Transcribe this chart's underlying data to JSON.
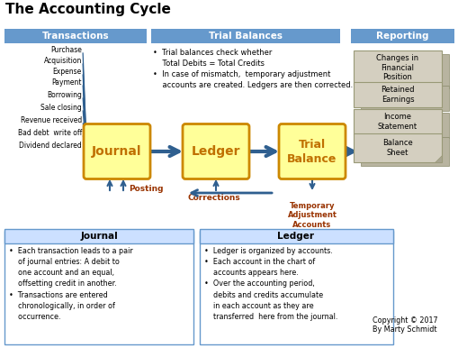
{
  "title": "The Accounting Cycle",
  "bg_color": "#ffffff",
  "header_bg": "#6699cc",
  "box_fill": "#ffff99",
  "box_edge": "#cc8800",
  "arrow_color": "#2f5f8f",
  "note_fill": "#d4cfc0",
  "note_edge": "#999977",
  "bottom_fill": "#cce0ff",
  "bottom_edge": "#6699cc",
  "sections": [
    "Transactions",
    "Trial Balances",
    "Reporting"
  ],
  "transaction_items": [
    "Purchase",
    "Acquisition",
    "Expense",
    "Payment",
    "Borrowing",
    "Sale closing",
    "Revenue received",
    "Bad debt  write off",
    "Dividend declared"
  ],
  "reporting_items": [
    "Changes in\nFinancial\nPosition",
    "Retained\nEarnings",
    "Income\nStatement",
    "Balance\nSheet"
  ],
  "tb_text": "•  Trial balances check whether\n    Total Debits = Total Credits\n•  In case of mismatch,  temporary adjustment\n    accounts are created. Ledgers are then corrected.",
  "posting_label": "Posting",
  "corrections_label": "Corrections",
  "temp_adj_label": "Temporary\nAdjustment\nAccounts",
  "bottom_left_header": "Journal",
  "bottom_right_header": "Ledger",
  "bottom_left_text": "•  Each transaction leads to a pair\n    of journal entries: A debit to\n    one account and an equal,\n    offsetting credit in another.\n•  Transactions are entered\n    chronologically, in order of\n    occurrence.",
  "bottom_right_text": "•  Ledger is organized by accounts.\n•  Each account in the chart of\n    accounts appears here.\n•  Over the accounting period,\n    debits and credits accumulate\n    in each account as they are\n    transferred  here from the journal.",
  "copyright": "Copyright © 2017\nBy Marty Schmidt"
}
